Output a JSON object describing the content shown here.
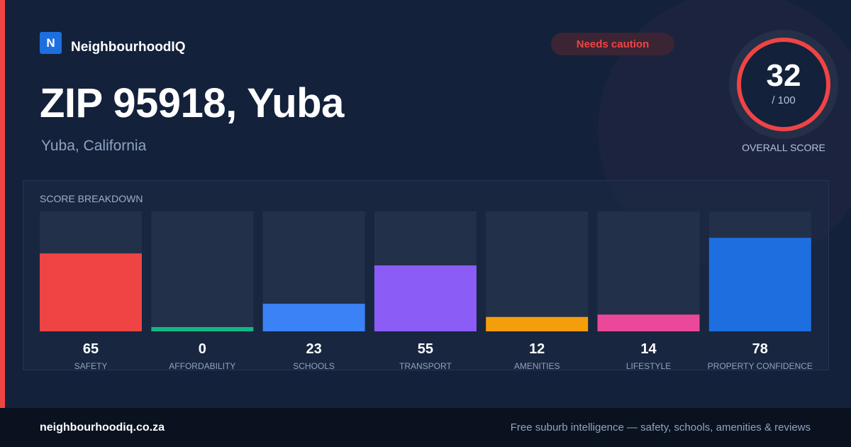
{
  "brand": {
    "logo_letter": "N",
    "name": "NeighbourhoodIQ",
    "color": "#1d6fe0"
  },
  "badge": {
    "label": "Needs caution",
    "color": "#ef4444"
  },
  "location": {
    "title": "ZIP 95918, Yuba",
    "subtitle": "Yuba, California"
  },
  "overall": {
    "value": 32,
    "value_text": "32",
    "max_text": "/ 100",
    "label": "OVERALL SCORE",
    "ring_color": "#ef4444"
  },
  "chart_data": {
    "type": "bar",
    "title": "SCORE BREAKDOWN",
    "ylim": [
      0,
      100
    ],
    "grid": false,
    "categories": [
      "SAFETY",
      "AFFORDABILITY",
      "SCHOOLS",
      "TRANSPORT",
      "AMENITIES",
      "LIFESTYLE",
      "PROPERTY CONFIDENCE"
    ],
    "values": [
      65,
      0,
      23,
      55,
      12,
      14,
      78
    ],
    "value_labels": [
      "65",
      "0",
      "23",
      "55",
      "12",
      "14",
      "78"
    ],
    "colors": [
      "#ef4444",
      "#10b981",
      "#3b82f6",
      "#8b5cf6",
      "#f59e0b",
      "#ec4899",
      "#1d6fe0"
    ]
  },
  "footer": {
    "url": "neighbourhoodiq.co.za",
    "tagline": "Free suburb intelligence — safety, schools, amenities & reviews"
  }
}
